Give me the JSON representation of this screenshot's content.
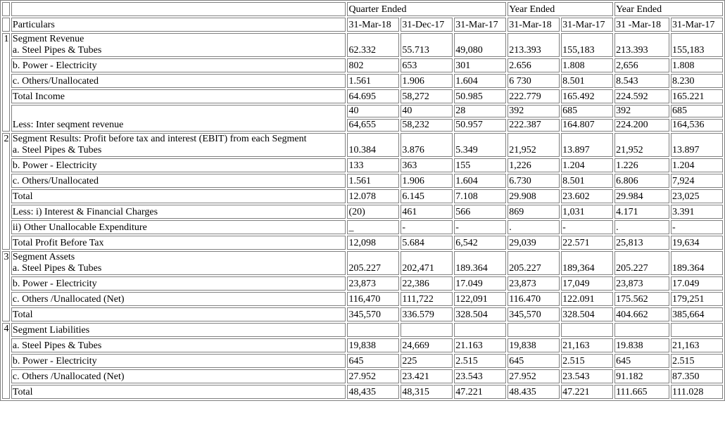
{
  "header": {
    "quarter_ended": "Quarter Ended",
    "year_ended_1": "Year Ended",
    "year_ended_2": "Year Ended",
    "particulars": "Particulars",
    "dates": [
      "31-Mar-18",
      "31-Dec-17",
      "31-Mar-17",
      "31-Mar-18",
      "31-Mar-17",
      "31 -Mar-18",
      "31-Mar-17"
    ]
  },
  "sections": {
    "s1": {
      "num": "1",
      "title": "Segment Revenue",
      "rows": [
        {
          "label": "a. Steel Pipes & Tubes",
          "values": [
            "62.332",
            "55.713",
            "49,080",
            "213.393",
            "155,183",
            "213.393",
            "155,183"
          ]
        },
        {
          "label": "b. Power - Electricity",
          "values": [
            "802",
            "653",
            "301",
            "2.656",
            "1.808",
            "2,656",
            "1.808"
          ]
        },
        {
          "label": "c. Others/Unallocated",
          "values": [
            "1.561",
            "1.906",
            "1.604",
            "6 730",
            "8.501",
            "8.543",
            "8.230"
          ]
        },
        {
          "label": "Total Income",
          "values": [
            "64.695",
            "58,272",
            "50.985",
            "222.779",
            "165.492",
            "224.592",
            "165.221"
          ]
        }
      ],
      "inter": {
        "label": "Less: Inter seqment revenue",
        "top": [
          "40",
          "40",
          "28",
          "392",
          "685",
          "392",
          "685"
        ],
        "bottom": [
          "64,655",
          "58,232",
          "50.957",
          "222.387",
          "164.807",
          "224.200",
          "164,536"
        ]
      }
    },
    "s2": {
      "num": "2",
      "title": "Segment Results: Profit before tax and interest (EBIT) from each Segment",
      "rows": [
        {
          "label": "a. Steel Pipes & Tubes",
          "values": [
            "10.384",
            "3.876",
            "5.349",
            "21,952",
            "13.897",
            "21,952",
            "13.897"
          ]
        },
        {
          "label": "b. Power - Electricity",
          "values": [
            "133",
            "363",
            "155",
            "1,226",
            "1.204",
            "1.226",
            "1.204"
          ]
        },
        {
          "label": "c. Others/Unallocated",
          "values": [
            "1.561",
            "1.906",
            "1.604",
            "6.730",
            "8.501",
            "6.806",
            "7,924"
          ]
        },
        {
          "label": "Total",
          "values": [
            "12.078",
            "6.145",
            "7.108",
            "29.908",
            "23.602",
            "29.984",
            "23,025"
          ]
        },
        {
          "label": "Less: i) Interest & Financial Charges",
          "values": [
            "(20)",
            "461",
            "566",
            "869",
            "1,031",
            "4.171",
            "3.391"
          ]
        },
        {
          "label": "ii) Other Unallocable Expenditure",
          "values": [
            "_",
            "-",
            "-",
            ".",
            "-",
            ".",
            "-"
          ]
        },
        {
          "label": "Total Profit Before Tax",
          "values": [
            "12,098",
            "5.684",
            "6,542",
            "29,039",
            "22.571",
            "25,813",
            "19,634"
          ]
        }
      ]
    },
    "s3": {
      "num": "3",
      "title": "Segment Assets",
      "rows": [
        {
          "label": "a. Steel Pipes & Tubes",
          "values": [
            "205.227",
            "202,471",
            "189.364",
            "205.227",
            "189,364",
            "205.227",
            "189.364"
          ]
        },
        {
          "label": "b. Power - Electricity",
          "values": [
            "23,873",
            "22,386",
            "17.049",
            "23,873",
            "17,049",
            "23,873",
            "17.049"
          ]
        },
        {
          "label": "c. Others /Unallocated (Net)",
          "values": [
            "116,470",
            "111,722",
            "122,091",
            "116.470",
            "122.091",
            "175.562",
            "179,251"
          ]
        },
        {
          "label": "Total",
          "values": [
            "345,570",
            "336.579",
            "328.504",
            "345,570",
            "328.504",
            "404.662",
            "385,664"
          ]
        }
      ]
    },
    "s4": {
      "num": "4",
      "title": "Segment Liabilities",
      "rows": [
        {
          "label": "a. Steel Pipes & Tubes",
          "values": [
            "19,838",
            "24,669",
            "21.163",
            "19,838",
            "21,163",
            "19.838",
            "21,163"
          ]
        },
        {
          "label": "b. Power - Electricity",
          "values": [
            "645",
            "225",
            "2.515",
            "645",
            "2.515",
            "645",
            "2.515"
          ]
        },
        {
          "label": "c. Others /Unallocated (Net)",
          "values": [
            "27.952",
            "23.421",
            "23.543",
            "27.952",
            "23.543",
            "91.182",
            "87.350"
          ]
        },
        {
          "label": "Total",
          "values": [
            "48,435",
            "48,315",
            "47.221",
            "48.435",
            "47.221",
            "111.665",
            "111.028"
          ]
        }
      ]
    }
  }
}
